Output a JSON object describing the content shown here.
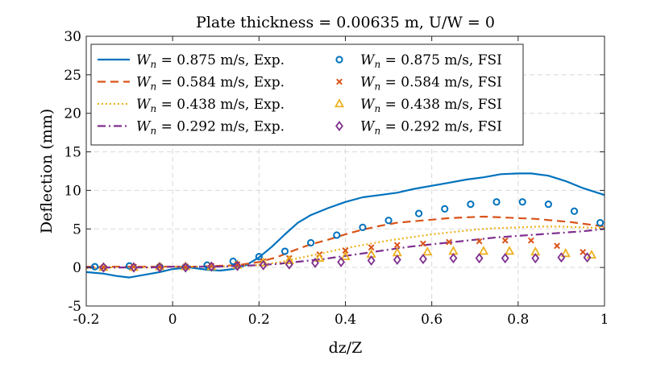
{
  "chart_data": {
    "type": "line",
    "title": "Plate thickness = 0.00635 m, U/W = 0",
    "xlabel": "dz/Z",
    "ylabel": "Deflection (mm)",
    "xlim": [
      -0.2,
      1
    ],
    "ylim": [
      -5,
      30
    ],
    "xticks": [
      -0.2,
      0,
      0.2,
      0.4,
      0.6,
      0.8,
      1
    ],
    "xtick_labels": [
      "-0.2",
      "0",
      "0.2",
      "0.4",
      "0.6",
      "0.8",
      "1"
    ],
    "yticks": [
      -5,
      0,
      5,
      10,
      15,
      20,
      25,
      30
    ],
    "ytick_labels": [
      "-5",
      "0",
      "5",
      "10",
      "15",
      "20",
      "25",
      "30"
    ],
    "grid": true,
    "legend_position": "top-left",
    "series": [
      {
        "name": "W_n = 0.875 m/s, Exp.",
        "label_var": "W",
        "label_sub": "n",
        "label_rest": " = 0.875 m/s, Exp.",
        "style": "solid",
        "marker": "none",
        "color": "#0072BD",
        "x": [
          -0.2,
          -0.16,
          -0.13,
          -0.1,
          -0.07,
          -0.03,
          0.0,
          0.04,
          0.08,
          0.11,
          0.14,
          0.17,
          0.2,
          0.23,
          0.26,
          0.29,
          0.32,
          0.36,
          0.4,
          0.44,
          0.48,
          0.52,
          0.56,
          0.6,
          0.64,
          0.68,
          0.72,
          0.76,
          0.8,
          0.83,
          0.87,
          0.91,
          0.95,
          1.0
        ],
        "y": [
          -0.6,
          -0.8,
          -1.1,
          -1.3,
          -1.0,
          -0.6,
          -0.2,
          0.0,
          -0.3,
          -0.4,
          -0.2,
          0.3,
          1.3,
          2.7,
          4.3,
          5.8,
          6.8,
          7.7,
          8.5,
          9.1,
          9.4,
          9.7,
          10.2,
          10.6,
          11.0,
          11.4,
          11.7,
          12.1,
          12.2,
          12.2,
          11.9,
          11.2,
          10.3,
          9.4
        ]
      },
      {
        "name": "W_n = 0.584 m/s, Exp.",
        "label_var": "W",
        "label_sub": "n",
        "label_rest": " = 0.584 m/s, Exp.",
        "style": "dashed",
        "marker": "none",
        "color": "#D95319",
        "x": [
          -0.2,
          -0.15,
          -0.1,
          -0.05,
          0.0,
          0.05,
          0.1,
          0.15,
          0.2,
          0.24,
          0.28,
          0.32,
          0.36,
          0.4,
          0.44,
          0.48,
          0.52,
          0.56,
          0.6,
          0.64,
          0.68,
          0.72,
          0.76,
          0.8,
          0.84,
          0.88,
          0.92,
          0.96,
          1.0
        ],
        "y": [
          0.1,
          0.1,
          0.1,
          0.1,
          0.1,
          0.1,
          0.2,
          0.3,
          0.7,
          1.3,
          2.2,
          3.0,
          3.6,
          4.3,
          4.9,
          5.4,
          5.8,
          6.0,
          6.2,
          6.4,
          6.5,
          6.6,
          6.5,
          6.4,
          6.3,
          6.1,
          5.9,
          5.6,
          5.3
        ]
      },
      {
        "name": "W_n = 0.438 m/s, Exp.",
        "label_var": "W",
        "label_sub": "n",
        "label_rest": " = 0.438 m/s, Exp.",
        "style": "dotted",
        "marker": "none",
        "color": "#EDB120",
        "x": [
          -0.2,
          -0.15,
          -0.1,
          -0.05,
          0.0,
          0.05,
          0.1,
          0.15,
          0.2,
          0.25,
          0.3,
          0.35,
          0.4,
          0.45,
          0.5,
          0.55,
          0.6,
          0.65,
          0.7,
          0.75,
          0.8,
          0.85,
          0.9,
          0.95,
          1.0
        ],
        "y": [
          -0.1,
          0.0,
          0.0,
          0.0,
          0.1,
          0.1,
          0.1,
          0.2,
          0.3,
          0.7,
          1.3,
          1.9,
          2.5,
          3.0,
          3.5,
          3.9,
          4.3,
          4.6,
          4.9,
          5.1,
          5.2,
          5.3,
          5.3,
          5.2,
          5.1
        ]
      },
      {
        "name": "W_n = 0.292 m/s, Exp.",
        "label_var": "W",
        "label_sub": "n",
        "label_rest": " = 0.292 m/s, Exp.",
        "style": "dashdot",
        "marker": "none",
        "color": "#7E2F8E",
        "x": [
          -0.2,
          -0.15,
          -0.1,
          -0.05,
          0.0,
          0.05,
          0.1,
          0.15,
          0.2,
          0.25,
          0.3,
          0.35,
          0.4,
          0.45,
          0.5,
          0.55,
          0.6,
          0.65,
          0.7,
          0.75,
          0.8,
          0.85,
          0.9,
          0.95,
          1.0
        ],
        "y": [
          0.0,
          0.0,
          0.0,
          0.0,
          0.1,
          0.1,
          0.1,
          0.2,
          0.3,
          0.5,
          0.8,
          1.1,
          1.5,
          1.9,
          2.3,
          2.7,
          3.0,
          3.3,
          3.6,
          3.9,
          4.1,
          4.3,
          4.5,
          4.7,
          5.0
        ]
      },
      {
        "name": "W_n = 0.875 m/s, FSI",
        "label_var": "W",
        "label_sub": "n",
        "label_rest": " = 0.875 m/s, FSI",
        "style": "none",
        "marker": "circle",
        "color": "#0072BD",
        "x": [
          -0.18,
          -0.1,
          -0.03,
          0.03,
          0.08,
          0.14,
          0.2,
          0.26,
          0.32,
          0.38,
          0.44,
          0.5,
          0.57,
          0.63,
          0.69,
          0.75,
          0.81,
          0.87,
          0.93,
          0.99
        ],
        "y": [
          0.1,
          0.2,
          0.1,
          0.1,
          0.3,
          0.8,
          1.4,
          2.1,
          3.2,
          4.2,
          5.2,
          6.1,
          7.0,
          7.6,
          8.2,
          8.5,
          8.5,
          8.2,
          7.3,
          5.8
        ]
      },
      {
        "name": "W_n = 0.584 m/s, FSI",
        "label_var": "W",
        "label_sub": "n",
        "label_rest": " = 0.584 m/s, FSI",
        "style": "none",
        "marker": "x",
        "color": "#D95319",
        "x": [
          -0.16,
          -0.09,
          -0.03,
          0.03,
          0.09,
          0.15,
          0.21,
          0.27,
          0.34,
          0.4,
          0.46,
          0.52,
          0.58,
          0.64,
          0.71,
          0.77,
          0.83,
          0.89,
          0.95
        ],
        "y": [
          0.0,
          0.1,
          0.1,
          0.1,
          0.2,
          0.4,
          0.8,
          1.2,
          1.7,
          2.2,
          2.6,
          2.9,
          3.1,
          3.3,
          3.4,
          3.5,
          3.5,
          2.8,
          2.0
        ]
      },
      {
        "name": "W_n = 0.438 m/s, FSI",
        "label_var": "W",
        "label_sub": "n",
        "label_rest": " = 0.438 m/s, FSI",
        "style": "none",
        "marker": "triangle",
        "color": "#EDB120",
        "x": [
          -0.16,
          -0.09,
          -0.03,
          0.03,
          0.09,
          0.15,
          0.21,
          0.27,
          0.34,
          0.4,
          0.46,
          0.52,
          0.59,
          0.65,
          0.72,
          0.78,
          0.84,
          0.91,
          0.97
        ],
        "y": [
          0.0,
          0.0,
          0.1,
          0.1,
          0.1,
          0.3,
          0.6,
          0.9,
          1.2,
          1.4,
          1.7,
          1.9,
          2.0,
          2.1,
          2.1,
          2.1,
          2.0,
          1.8,
          1.6
        ]
      },
      {
        "name": "W_n = 0.292 m/s, FSI",
        "label_var": "W",
        "label_sub": "n",
        "label_rest": " = 0.292 m/s, FSI",
        "style": "none",
        "marker": "diamond",
        "color": "#7E2F8E",
        "x": [
          -0.16,
          -0.09,
          -0.03,
          0.03,
          0.09,
          0.15,
          0.21,
          0.27,
          0.33,
          0.39,
          0.46,
          0.52,
          0.58,
          0.65,
          0.71,
          0.77,
          0.84,
          0.9,
          0.96
        ],
        "y": [
          0.0,
          0.0,
          0.0,
          0.0,
          0.1,
          0.2,
          0.3,
          0.4,
          0.6,
          0.7,
          0.9,
          1.0,
          1.1,
          1.2,
          1.2,
          1.2,
          1.2,
          1.3,
          1.3
        ]
      }
    ]
  }
}
